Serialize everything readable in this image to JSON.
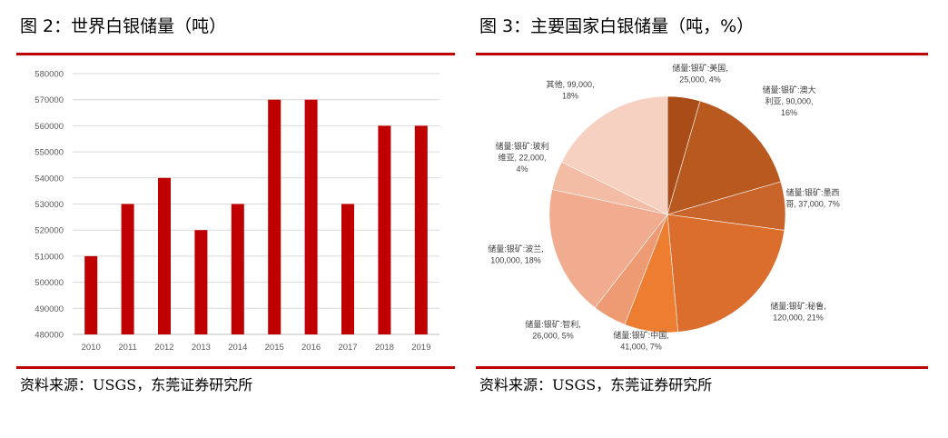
{
  "left": {
    "title": "图 2：世界白银储量（吨）",
    "source": "资料来源：USGS，东莞证券研究所"
  },
  "right": {
    "title": "图 3：主要国家白银储量（吨，%）",
    "source": "资料来源：USGS，东莞证券研究所"
  },
  "colors": {
    "accent_rule": "#c00000",
    "bar": "#c00000"
  },
  "chart_data": [
    {
      "type": "bar",
      "title": "",
      "xlabel": "",
      "ylabel": "",
      "categories": [
        "2010",
        "2011",
        "2012",
        "2013",
        "2014",
        "2015",
        "2016",
        "2017",
        "2018",
        "2019"
      ],
      "values": [
        510000,
        530000,
        540000,
        520000,
        530000,
        570000,
        570000,
        530000,
        560000,
        560000
      ],
      "ylim": [
        480000,
        580000
      ],
      "yticks": [
        "480000",
        "490000",
        "500000",
        "510000",
        "520000",
        "530000",
        "540000",
        "550000",
        "560000",
        "570000",
        "580000"
      ],
      "grid": true,
      "color": "#c00000"
    },
    {
      "type": "pie",
      "title": "",
      "slices": [
        {
          "label_lines": [
            "储量:银矿:美国,",
            "25,000, 4%"
          ],
          "value": 25000,
          "percent": "4%",
          "color": "#a94c18"
        },
        {
          "label_lines": [
            "储量:银矿:澳大",
            "利亚, 90,000,",
            "16%"
          ],
          "value": 90000,
          "percent": "16%",
          "color": "#b85a20"
        },
        {
          "label_lines": [
            "储量:银矿:墨西",
            "哥, 37,000, 7%"
          ],
          "value": 37000,
          "percent": "7%",
          "color": "#c9652a"
        },
        {
          "label_lines": [
            "储量:银矿:秘鲁,",
            "120,000, 21%"
          ],
          "value": 120000,
          "percent": "21%",
          "color": "#db6e2d"
        },
        {
          "label_lines": [
            "储量:银矿:中国,",
            "41,000, 7%"
          ],
          "value": 41000,
          "percent": "7%",
          "color": "#ec7d31"
        },
        {
          "label_lines": [
            "储量:银矿:智利,",
            "26,000, 5%"
          ],
          "value": 26000,
          "percent": "5%",
          "color": "#ee9a72"
        },
        {
          "label_lines": [
            "储量:银矿:波兰,",
            "100,000, 18%"
          ],
          "value": 100000,
          "percent": "18%",
          "color": "#f1ab8f"
        },
        {
          "label_lines": [
            "储量:银矿:玻利",
            "维亚, 22,000,",
            "4%"
          ],
          "value": 22000,
          "percent": "4%",
          "color": "#f3bca5"
        },
        {
          "label_lines": [
            "其他, 99,000,",
            "18%"
          ],
          "value": 99000,
          "percent": "18%",
          "color": "#f6d0c0"
        }
      ]
    }
  ]
}
